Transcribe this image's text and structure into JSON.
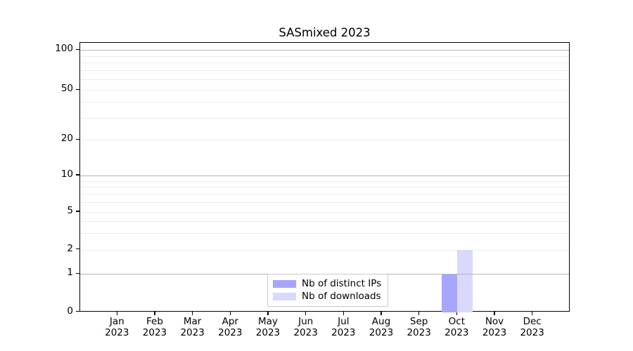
{
  "chart_data": {
    "type": "bar",
    "title": "SASmixed 2023",
    "categories": [
      "Jan 2023",
      "Feb 2023",
      "Mar 2023",
      "Apr 2023",
      "May 2023",
      "Jun 2023",
      "Jul 2023",
      "Aug 2023",
      "Sep 2023",
      "Oct 2023",
      "Nov 2023",
      "Dec 2023"
    ],
    "series": [
      {
        "name": "Nb of distinct IPs",
        "color": "#a6a6ff",
        "values": [
          0,
          0,
          0,
          0,
          0,
          0,
          0,
          0,
          0,
          1,
          0,
          0
        ]
      },
      {
        "name": "Nb of downloads",
        "color": "#d9d9ff",
        "values": [
          0,
          0,
          0,
          0,
          0,
          0,
          0,
          0,
          0,
          2,
          0,
          0
        ]
      }
    ],
    "y_axis": {
      "scale": "symlog",
      "range": [
        0,
        100
      ],
      "ticks": [
        0,
        1,
        2,
        5,
        10,
        20,
        50,
        100
      ],
      "major_gridlines": [
        1,
        10,
        100
      ],
      "minor_gridlines": [
        2,
        3,
        4,
        5,
        6,
        7,
        8,
        9,
        20,
        30,
        40,
        50,
        60,
        70,
        80,
        90
      ]
    },
    "legend_position": "lower center inside",
    "grid": true,
    "colors": {
      "background": "#ffffff",
      "spine": "#000000",
      "grid_major": "#b5b5b5",
      "grid_minor": "#ececec",
      "text": "#000000",
      "legend_border": "#c9c9c9"
    }
  }
}
